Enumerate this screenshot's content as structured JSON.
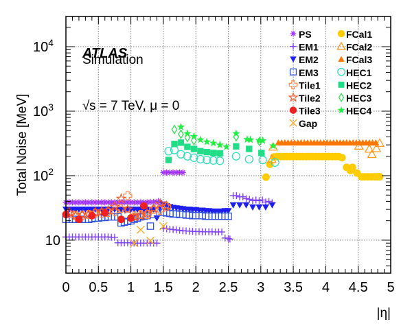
{
  "chart_data": {
    "type": "scatter",
    "title": "",
    "xlabel": "|η|",
    "ylabel": "Total Noise [MeV]",
    "xlim": [
      0,
      5
    ],
    "ylim": [
      3.08,
      29400
    ],
    "yscale": "log",
    "grid": true,
    "x_ticks": [
      "0",
      "0.5",
      "1",
      "1.5",
      "2",
      "2.5",
      "3",
      "3.5",
      "4",
      "4.5",
      "5"
    ],
    "x_tick_values": [
      0,
      0.5,
      1,
      1.5,
      2,
      2.5,
      3,
      3.5,
      4,
      4.5,
      5
    ],
    "y_ticks": [
      {
        "value": 10,
        "base": "10",
        "exp": ""
      },
      {
        "value": 100,
        "base": "10",
        "exp": "2"
      },
      {
        "value": 1000,
        "base": "10",
        "exp": "3"
      },
      {
        "value": 10000,
        "base": "10",
        "exp": "4"
      }
    ],
    "annotations": {
      "experiment": "ATLAS",
      "label": "Simulation",
      "conditions_prefix": "√",
      "conditions": "s = 7 TeV, μ = 0"
    },
    "legend_position": "top-right",
    "series": [
      {
        "name": "PS",
        "marker": "asterisk",
        "color": "#A030FF",
        "x": [
          0.0,
          0.05,
          0.1,
          0.15,
          0.2,
          0.25,
          0.3,
          0.35,
          0.4,
          0.45,
          0.5,
          0.55,
          0.6,
          0.65,
          0.7,
          0.75,
          0.8,
          0.85,
          0.9,
          0.95,
          1.0,
          1.05,
          1.1,
          1.15,
          1.2,
          1.25,
          1.3,
          1.35,
          1.4,
          1.45,
          1.5,
          1.55,
          1.6,
          1.65,
          1.7,
          1.75,
          1.8
        ],
        "y": [
          38.5,
          38.5,
          38.5,
          38.5,
          38.5,
          38.5,
          38.5,
          38.5,
          38.5,
          38.5,
          38.5,
          38.5,
          38.5,
          38.5,
          38.5,
          38.5,
          38.5,
          38.5,
          38.5,
          38.5,
          38.5,
          38.5,
          38.5,
          38.5,
          38.5,
          38.5,
          39,
          39,
          39,
          39,
          112,
          112,
          112,
          112,
          112,
          112,
          112
        ]
      },
      {
        "name": "EM1",
        "marker": "plus",
        "color": "#8040FF",
        "x": [
          0.0,
          0.05,
          0.1,
          0.15,
          0.2,
          0.25,
          0.3,
          0.35,
          0.4,
          0.45,
          0.5,
          0.55,
          0.6,
          0.65,
          0.7,
          0.75,
          0.8,
          0.85,
          0.9,
          0.95,
          1.0,
          1.05,
          1.1,
          1.15,
          1.2,
          1.25,
          1.3,
          1.35,
          1.4,
          1.425,
          1.475,
          1.5,
          1.55,
          1.6,
          1.65,
          1.7,
          1.75,
          1.8,
          1.85,
          1.9,
          1.95,
          2.0,
          2.05,
          2.1,
          2.15,
          2.2,
          2.25,
          2.3,
          2.35,
          2.4,
          2.45,
          2.5,
          2.525,
          2.575,
          2.625,
          2.675,
          2.725,
          2.775,
          2.825,
          2.875,
          2.925,
          2.975,
          3.025,
          3.075,
          3.125,
          3.175
        ],
        "y": [
          11.2,
          11.2,
          11.2,
          11.2,
          11.2,
          11.2,
          11.2,
          11.2,
          11.2,
          11.2,
          11.2,
          11.2,
          11.2,
          11.2,
          11.1,
          11.1,
          9.1,
          9.1,
          9.1,
          9.1,
          9.1,
          9.0,
          9.0,
          9.0,
          9.0,
          9.0,
          9.0,
          9.0,
          9.0,
          40,
          36,
          15.2,
          15.0,
          14.8,
          14.6,
          14.4,
          14.2,
          14.0,
          13.9,
          13.8,
          13.7,
          13.6,
          13.6,
          13.5,
          13.5,
          13.5,
          13.5,
          13.4,
          13.4,
          13.4,
          10.8,
          10.6,
          10.4,
          49,
          49,
          47,
          47,
          44,
          43,
          41,
          42,
          41,
          42,
          39,
          40,
          38
        ]
      },
      {
        "name": "EM2",
        "marker": "triangle-down-filled",
        "color": "#1E1EF0",
        "x": [
          0.0,
          0.05,
          0.1,
          0.15,
          0.2,
          0.25,
          0.3,
          0.35,
          0.4,
          0.45,
          0.5,
          0.55,
          0.6,
          0.65,
          0.7,
          0.75,
          0.8,
          0.85,
          0.9,
          0.95,
          1.0,
          1.05,
          1.1,
          1.15,
          1.2,
          1.25,
          1.3,
          1.35,
          1.4,
          1.45,
          1.5,
          1.55,
          1.6,
          1.65,
          1.7,
          1.75,
          1.8,
          1.85,
          1.9,
          1.95,
          2.0,
          2.05,
          2.1,
          2.15,
          2.2,
          2.25,
          2.3,
          2.35,
          2.4,
          2.45,
          2.5,
          2.575,
          2.675,
          2.775,
          2.875,
          2.975,
          3.075,
          3.175
        ],
        "y": [
          30,
          30,
          30,
          30,
          30,
          30,
          30,
          30,
          30,
          30,
          30,
          30,
          30,
          30,
          30,
          30,
          30,
          30,
          30,
          30,
          30,
          30,
          30,
          30,
          30,
          30,
          30,
          30,
          22,
          30,
          36,
          34,
          33,
          32,
          31.5,
          31,
          30.5,
          30,
          30,
          29.5,
          29.5,
          29,
          29,
          28.5,
          28.5,
          28,
          28,
          28,
          28,
          28.5,
          28.5,
          35,
          35,
          35,
          32.5,
          32.5,
          32.5,
          35
        ]
      },
      {
        "name": "EM3",
        "marker": "square-open",
        "color": "#3050E0",
        "x": [
          0.0,
          0.05,
          0.1,
          0.15,
          0.2,
          0.25,
          0.3,
          0.35,
          0.4,
          0.45,
          0.5,
          0.55,
          0.6,
          0.65,
          0.7,
          0.75,
          0.8,
          0.85,
          0.9,
          0.95,
          1.0,
          1.05,
          1.1,
          1.15,
          1.2,
          1.25,
          1.3,
          1.35,
          1.5,
          1.55,
          1.6,
          1.65,
          1.7,
          1.75,
          1.8,
          1.85,
          1.9,
          1.95,
          2.0,
          2.05,
          2.1,
          2.15,
          2.2,
          2.25,
          2.3,
          2.35,
          2.4,
          2.45,
          2.5
        ],
        "y": [
          21,
          21,
          21,
          21,
          21,
          21,
          21,
          21,
          21.5,
          22,
          22,
          22.5,
          22.5,
          23,
          23,
          23,
          23,
          18.5,
          19,
          19.5,
          20,
          21,
          22,
          23,
          23.5,
          24,
          16.5,
          25,
          27,
          26.5,
          26,
          25.5,
          25.5,
          25,
          25,
          24.5,
          24.5,
          24,
          24,
          24,
          24,
          23.5,
          23.5,
          23.5,
          23.5,
          23.5,
          23.5,
          23.5,
          23.5
        ]
      },
      {
        "name": "Tile1",
        "marker": "cross-open",
        "color": "#FF8844",
        "x": [
          0.05,
          0.15,
          0.25,
          0.35,
          0.45,
          0.55,
          0.65,
          0.75,
          0.85,
          0.95,
          1.05,
          1.15,
          1.25,
          1.35,
          1.45,
          1.55
        ],
        "y": [
          26,
          24,
          24,
          25,
          26,
          26,
          27,
          28,
          31,
          49,
          24,
          25,
          25,
          30,
          29,
          33
        ]
      },
      {
        "name": "Tile2",
        "marker": "star-open",
        "color": "#FF5522",
        "x": [
          0.05,
          0.15,
          0.25,
          0.35,
          0.45,
          0.55,
          0.65,
          0.75,
          0.85,
          0.95,
          1.05,
          1.15,
          1.25,
          1.35,
          1.45,
          1.55
        ],
        "y": [
          27,
          24,
          25,
          25,
          27,
          28,
          29,
          33,
          44,
          30,
          23,
          24,
          26,
          31,
          37,
          34
        ]
      },
      {
        "name": "Tile3",
        "marker": "circle-filled",
        "color": "#EE2020",
        "x": [
          0.0,
          0.2,
          0.4,
          0.6,
          0.85,
          1.0,
          1.2
        ],
        "y": [
          25,
          21,
          24,
          26.5,
          21,
          22,
          34
        ]
      },
      {
        "name": "Gap",
        "marker": "x",
        "color": "#FFAA22",
        "x": [
          1.05,
          1.15,
          1.3,
          1.5
        ],
        "y": [
          9,
          14.5,
          9.8,
          16.5
        ]
      },
      {
        "name": "FCal1",
        "marker": "circle-filled",
        "color": "#FFCC00",
        "x": [
          3.08,
          3.14,
          3.2,
          3.25,
          3.3,
          3.35,
          3.4,
          3.45,
          3.5,
          3.55,
          3.6,
          3.65,
          3.7,
          3.75,
          3.8,
          3.85,
          3.9,
          3.95,
          4.0,
          4.05,
          4.1,
          4.15,
          4.2,
          4.25,
          4.32,
          4.38,
          4.41,
          4.48,
          4.55,
          4.6,
          4.65,
          4.7,
          4.75,
          4.8,
          4.83
        ],
        "y": [
          95,
          150,
          195,
          198,
          198,
          198,
          198,
          198,
          198,
          198,
          198,
          198,
          198,
          198,
          198,
          198,
          198,
          198,
          198,
          198,
          198,
          198,
          198,
          190,
          135,
          120,
          135,
          110,
          96,
          96,
          96,
          96,
          96,
          96,
          96
        ]
      },
      {
        "name": "FCal2",
        "marker": "triangle-open",
        "color": "#FF9922",
        "x": [
          3.19,
          3.17,
          4.51,
          4.67,
          4.71,
          4.78,
          4.83
        ],
        "y": [
          280,
          180,
          290,
          260,
          215,
          265,
          320
        ]
      },
      {
        "name": "FCal3",
        "marker": "triangle-filled",
        "color": "#FF7700",
        "x": [
          3.27,
          3.32,
          3.37,
          3.42,
          3.47,
          3.52,
          3.57,
          3.62,
          3.67,
          3.72,
          3.77,
          3.82,
          3.87,
          3.92,
          3.97,
          4.02,
          4.07,
          4.12,
          4.17,
          4.22,
          4.27,
          4.32,
          4.37,
          4.42,
          4.47,
          4.52,
          4.57,
          4.62,
          4.67,
          4.72,
          4.77
        ],
        "y": [
          325,
          325,
          325,
          325,
          325,
          325,
          325,
          325,
          325,
          325,
          325,
          325,
          325,
          325,
          325,
          325,
          325,
          325,
          325,
          325,
          325,
          325,
          325,
          325,
          325,
          325,
          325,
          325,
          325,
          325,
          325
        ]
      },
      {
        "name": "HEC1",
        "marker": "circle-open",
        "color": "#33DDBB",
        "x": [
          1.58,
          1.67,
          1.77,
          1.87,
          1.97,
          2.07,
          2.17,
          2.27,
          2.37,
          2.62,
          2.82,
          3.03,
          3.22
        ],
        "y": [
          240,
          250,
          215,
          200,
          190,
          180,
          175,
          172,
          170,
          200,
          180,
          175,
          160
        ]
      },
      {
        "name": "HEC2",
        "marker": "square-filled",
        "color": "#22DD88",
        "x": [
          1.58,
          1.67,
          1.77,
          1.87,
          1.97,
          2.07,
          2.17,
          2.27,
          2.37,
          2.62,
          2.82,
          3.01
        ],
        "y": [
          175,
          310,
          325,
          280,
          260,
          240,
          232,
          225,
          222,
          285,
          260,
          225
        ]
      },
      {
        "name": "HEC3",
        "marker": "diamond-open",
        "color": "#33DD55",
        "x": [
          1.67,
          1.77,
          1.87,
          1.97,
          2.62,
          2.98
        ],
        "y": [
          520,
          440,
          390,
          350,
          400,
          340
        ]
      },
      {
        "name": "HEC4",
        "marker": "star-filled",
        "color": "#22EE44",
        "x": [
          1.77,
          1.87,
          1.97,
          2.07,
          2.17,
          2.27,
          2.37,
          2.47,
          2.62,
          2.79,
          2.84,
          2.98,
          3.03,
          3.19
        ],
        "y": [
          569,
          450,
          405,
          360,
          335,
          320,
          300,
          280,
          450,
          365,
          360,
          350,
          350,
          290
        ]
      }
    ]
  }
}
